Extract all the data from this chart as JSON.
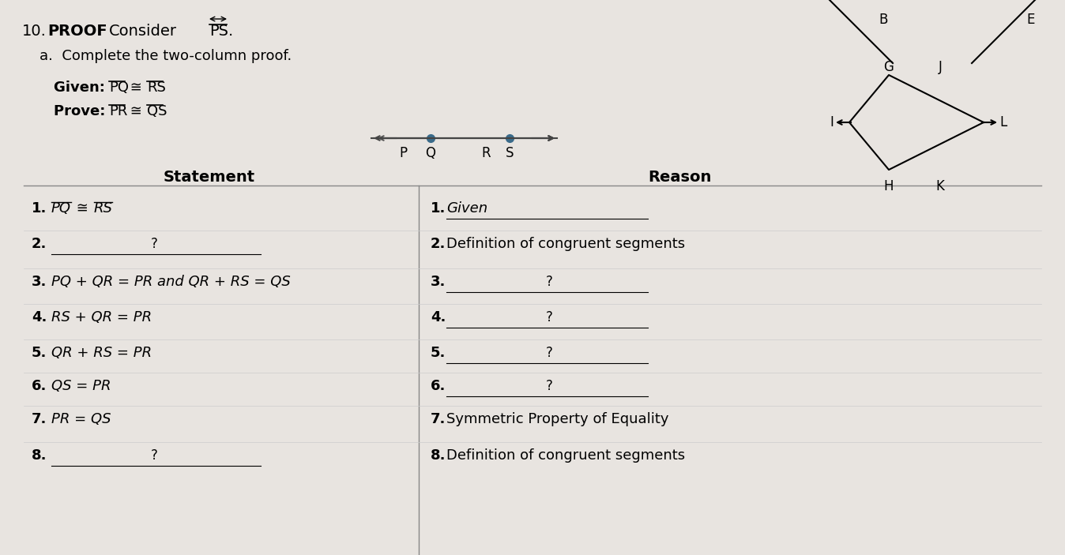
{
  "title_number": "10.",
  "title_bold": "PROOF",
  "title_rest": " Consider ",
  "title_ps": "PS",
  "subtitle": "a.  Complete the two-column proof.",
  "given_label": "Given: ",
  "given_math": "PQ ≅ RS",
  "prove_label": "Prove: ",
  "prove_math": "PR ≅ QS",
  "col_statement": "Statement",
  "col_reason": "Reason",
  "bg_color": "#e8e4e0",
  "statements": [
    "1.  ̅P̅Q̅ ≅ ̅R̅S̅",
    "2.  ___________?___________",
    "3.  PQ + QR = PR and QR + RS = QS",
    "4.  RS + QR = PR",
    "5.  QR + RS = PR",
    "6.  QS = PR",
    "7.  PR = QS",
    "8.  ___________?___________"
  ],
  "reasons": [
    "1.  Given",
    "2.  Definition of congruent segments",
    "3.  ___________?___________",
    "4.  ___________?___________",
    "5.  ___________?___________",
    "6.  ___________?___________",
    "7.  Symmetric Property of Equality",
    "8.  Definition of congruent segments"
  ]
}
